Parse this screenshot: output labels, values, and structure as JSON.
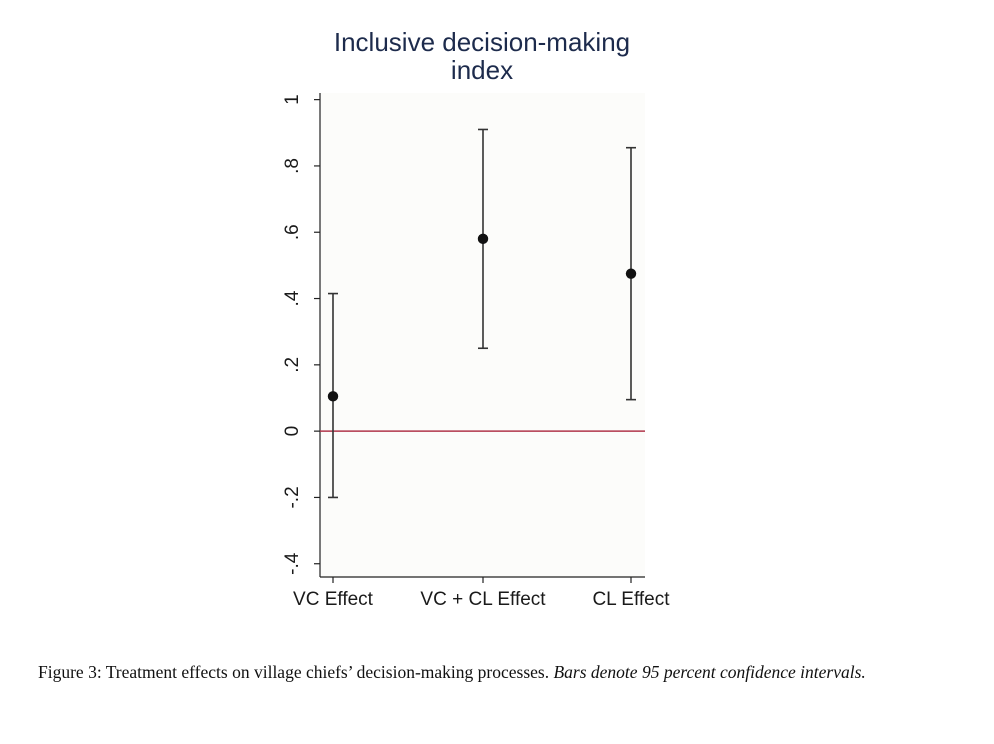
{
  "chart_data": {
    "type": "scatter",
    "subtype": "point-estimates-with-confidence-intervals",
    "title": [
      "Inclusive decision-making",
      "index"
    ],
    "categories": [
      "VC Effect",
      "VC + CL Effect",
      "CL Effect"
    ],
    "values": [
      0.105,
      0.58,
      0.475
    ],
    "ci_lower": [
      -0.2,
      0.25,
      0.095
    ],
    "ci_upper": [
      0.415,
      0.91,
      0.855
    ],
    "yticks": [
      -0.4,
      -0.2,
      0,
      0.2,
      0.4,
      0.6,
      0.8,
      1
    ],
    "ytick_labels": [
      "-.4",
      "-.2",
      "0",
      ".2",
      ".4",
      ".6",
      ".8",
      "1"
    ],
    "ylim": [
      -0.44,
      1.02
    ],
    "reference_line": {
      "y": 0
    },
    "grid": false,
    "colors": {
      "plot_background": "#fcfcfa",
      "title": "#1d2b4c",
      "reference_line": "#b0364a",
      "marker": "#111111",
      "axis": "#222222"
    }
  },
  "caption": {
    "main": "Figure 3: Treatment effects on village chiefs’ decision-making processes. ",
    "italic": "Bars denote 95 percent confidence intervals."
  }
}
